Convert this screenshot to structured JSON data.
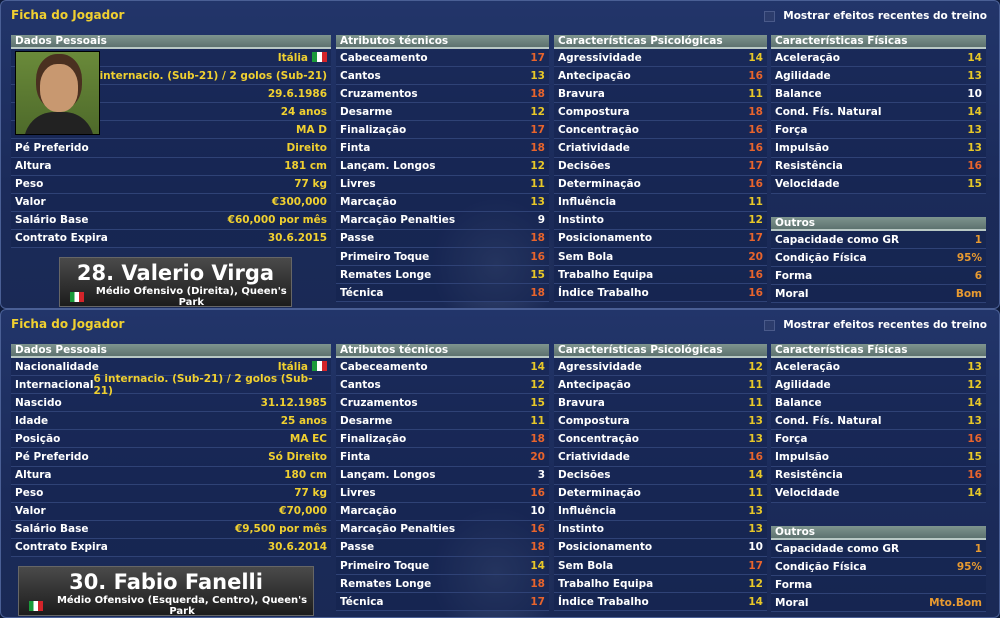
{
  "panels": [
    {
      "title": "Ficha do Jogador",
      "training_toggle": {
        "label": "Mostrar efeitos recentes do treino",
        "checked": false
      },
      "name": "28. Valerio Virga",
      "subtitle": "Médio Ofensivo (Direita), Queen's Park",
      "has_photo": true,
      "personal": {
        "header": "Dados Pessoais",
        "rows": [
          {
            "label": "",
            "value": "Itália",
            "flag": "italy-flag"
          },
          {
            "label": "",
            "value": "20 internacio. (Sub-21) / 2 golos (Sub-21)"
          },
          {
            "label": "",
            "value": "29.6.1986"
          },
          {
            "label": "",
            "value": "24 anos"
          },
          {
            "label": "",
            "value": "MA D"
          },
          {
            "label": "Pé Preferido",
            "value": "Direito"
          },
          {
            "label": "Altura",
            "value": "181 cm"
          },
          {
            "label": "Peso",
            "value": "77 kg"
          },
          {
            "label": "Valor",
            "value": "€300,000"
          },
          {
            "label": "Salário Base",
            "value": "€60,000 por mês"
          },
          {
            "label": "Contrato Expira",
            "value": "30.6.2015"
          }
        ]
      },
      "technical": {
        "header": "Atributos técnicos",
        "rows": [
          [
            "Cabeceamento",
            "17"
          ],
          [
            "Cantos",
            "13"
          ],
          [
            "Cruzamentos",
            "18"
          ],
          [
            "Desarme",
            "12"
          ],
          [
            "Finalização",
            "17"
          ],
          [
            "Finta",
            "18"
          ],
          [
            "Lançam. Longos",
            "12"
          ],
          [
            "Livres",
            "11"
          ],
          [
            "Marcação",
            "13"
          ],
          [
            "Marcação Penalties",
            "9"
          ],
          [
            "Passe",
            "18"
          ],
          [
            "Primeiro Toque",
            "16"
          ],
          [
            "Remates Longe",
            "15"
          ],
          [
            "Técnica",
            "18"
          ]
        ]
      },
      "mental": {
        "header": "Características Psicológicas",
        "rows": [
          [
            "Agressividade",
            "14"
          ],
          [
            "Antecipação",
            "16"
          ],
          [
            "Bravura",
            "11"
          ],
          [
            "Compostura",
            "18"
          ],
          [
            "Concentração",
            "16"
          ],
          [
            "Criatividade",
            "16"
          ],
          [
            "Decisões",
            "17"
          ],
          [
            "Determinação",
            "16"
          ],
          [
            "Influência",
            "11"
          ],
          [
            "Instinto",
            "12"
          ],
          [
            "Posicionamento",
            "17"
          ],
          [
            "Sem Bola",
            "20"
          ],
          [
            "Trabalho Equipa",
            "16"
          ],
          [
            "Índice Trabalho",
            "16"
          ]
        ]
      },
      "physical": {
        "header": "Características Físicas",
        "rows": [
          [
            "Aceleração",
            "14"
          ],
          [
            "Agilidade",
            "13"
          ],
          [
            "Balance",
            "10"
          ],
          [
            "Cond. Fís. Natural",
            "14"
          ],
          [
            "Força",
            "13"
          ],
          [
            "Impulsão",
            "13"
          ],
          [
            "Resistência",
            "16"
          ],
          [
            "Velocidade",
            "15"
          ]
        ]
      },
      "other": {
        "header": "Outros",
        "rows": [
          [
            "Capacidade como GR",
            "1"
          ],
          [
            "Condição Física",
            "95%"
          ],
          [
            "Forma",
            "6"
          ],
          [
            "Moral",
            "Bom"
          ]
        ]
      }
    },
    {
      "title": "Ficha do Jogador",
      "training_toggle": {
        "label": "Mostrar efeitos recentes do treino",
        "checked": false
      },
      "name": "30. Fabio Fanelli",
      "subtitle": "Médio Ofensivo (Esquerda, Centro), Queen's Park",
      "has_photo": false,
      "personal": {
        "header": "Dados Pessoais",
        "rows": [
          {
            "label": "Nacionalidade",
            "value": "Itália",
            "flag": "italy-flag"
          },
          {
            "label": "Internacional",
            "value": "6 internacio. (Sub-21) / 2 golos (Sub-21)"
          },
          {
            "label": "Nascido",
            "value": "31.12.1985"
          },
          {
            "label": "Idade",
            "value": "25 anos"
          },
          {
            "label": "Posição",
            "value": "MA EC"
          },
          {
            "label": "Pé Preferido",
            "value": "Só Direito"
          },
          {
            "label": "Altura",
            "value": "180 cm"
          },
          {
            "label": "Peso",
            "value": "77 kg"
          },
          {
            "label": "Valor",
            "value": "€70,000"
          },
          {
            "label": "Salário Base",
            "value": "€9,500 por mês"
          },
          {
            "label": "Contrato Expira",
            "value": "30.6.2014"
          }
        ]
      },
      "technical": {
        "header": "Atributos técnicos",
        "rows": [
          [
            "Cabeceamento",
            "14"
          ],
          [
            "Cantos",
            "12"
          ],
          [
            "Cruzamentos",
            "15"
          ],
          [
            "Desarme",
            "11"
          ],
          [
            "Finalização",
            "18"
          ],
          [
            "Finta",
            "20"
          ],
          [
            "Lançam. Longos",
            "3"
          ],
          [
            "Livres",
            "16"
          ],
          [
            "Marcação",
            "10"
          ],
          [
            "Marcação Penalties",
            "16"
          ],
          [
            "Passe",
            "18"
          ],
          [
            "Primeiro Toque",
            "14"
          ],
          [
            "Remates Longe",
            "18"
          ],
          [
            "Técnica",
            "17"
          ]
        ]
      },
      "mental": {
        "header": "Características Psicológicas",
        "rows": [
          [
            "Agressividade",
            "12"
          ],
          [
            "Antecipação",
            "11"
          ],
          [
            "Bravura",
            "11"
          ],
          [
            "Compostura",
            "13"
          ],
          [
            "Concentração",
            "13"
          ],
          [
            "Criatividade",
            "16"
          ],
          [
            "Decisões",
            "14"
          ],
          [
            "Determinação",
            "11"
          ],
          [
            "Influência",
            "13"
          ],
          [
            "Instinto",
            "13"
          ],
          [
            "Posicionamento",
            "10"
          ],
          [
            "Sem Bola",
            "17"
          ],
          [
            "Trabalho Equipa",
            "12"
          ],
          [
            "Índice Trabalho",
            "14"
          ]
        ]
      },
      "physical": {
        "header": "Características Físicas",
        "rows": [
          [
            "Aceleração",
            "13"
          ],
          [
            "Agilidade",
            "12"
          ],
          [
            "Balance",
            "14"
          ],
          [
            "Cond. Fís. Natural",
            "13"
          ],
          [
            "Força",
            "16"
          ],
          [
            "Impulsão",
            "15"
          ],
          [
            "Resistência",
            "16"
          ],
          [
            "Velocidade",
            "14"
          ]
        ]
      },
      "other": {
        "header": "Outros",
        "rows": [
          [
            "Capacidade como GR",
            "1"
          ],
          [
            "Condição Física",
            "95%"
          ],
          [
            "Forma",
            ""
          ],
          [
            "Moral",
            "Mto.Bom"
          ]
        ]
      }
    }
  ],
  "colors": {
    "high": "#e8642c",
    "mid": "#e8c828",
    "low": "#ffffff",
    "info": "#f0d030",
    "other": "#e89a30"
  }
}
